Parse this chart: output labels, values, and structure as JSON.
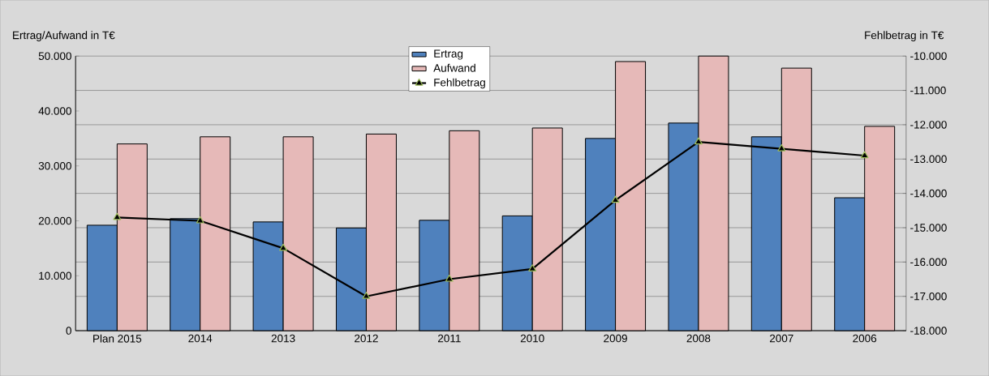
{
  "chart_data": {
    "type": "bar",
    "ylabel": "Ertrag/Aufwand in T€",
    "y2label": "Fehlbetrag in T€",
    "categories": [
      "Plan 2015",
      "2014",
      "2013",
      "2012",
      "2011",
      "2010",
      "2009",
      "2008",
      "2007",
      "2006"
    ],
    "series": [
      {
        "name": "Ertrag",
        "color": "#4f81bd",
        "values": [
          19200,
          20400,
          19800,
          18700,
          20100,
          20900,
          35000,
          37800,
          35300,
          24200
        ]
      },
      {
        "name": "Aufwand",
        "color": "#e6b9b8",
        "values": [
          34000,
          35300,
          35300,
          35800,
          36400,
          36900,
          49000,
          50000,
          47800,
          37200
        ]
      },
      {
        "name": "Fehlbetrag",
        "type": "line",
        "axis": "y2",
        "color": "#000000",
        "marker": "triangle",
        "values": [
          -14700,
          -14800,
          -15600,
          -17000,
          -16500,
          -16200,
          -14200,
          -12500,
          -12700,
          -12900
        ]
      }
    ],
    "ylim": [
      0,
      50000
    ],
    "yticks": [
      0,
      {
        "value": 10000,
        "label": "10.000"
      },
      {
        "value": 20000,
        "label": "20.000"
      },
      {
        "value": 30000,
        "label": "30.000"
      },
      {
        "value": 40000,
        "label": "40.000"
      },
      {
        "value": 50000,
        "label": "50.000"
      }
    ],
    "y2lim": [
      -18000,
      -10000
    ],
    "y2ticks": [
      {
        "value": -18000,
        "label": "-18.000"
      },
      {
        "value": -17000,
        "label": "-17.000"
      },
      {
        "value": -16000,
        "label": "-16.000"
      },
      {
        "value": -15000,
        "label": "-15.000"
      },
      {
        "value": -14000,
        "label": "-14.000"
      },
      {
        "value": -13000,
        "label": "-13.000"
      },
      {
        "value": -12000,
        "label": "-12.000"
      },
      {
        "value": -11000,
        "label": "-11.000"
      },
      {
        "value": -10000,
        "label": "-10.000"
      }
    ],
    "grid": "y",
    "legend": "top"
  }
}
